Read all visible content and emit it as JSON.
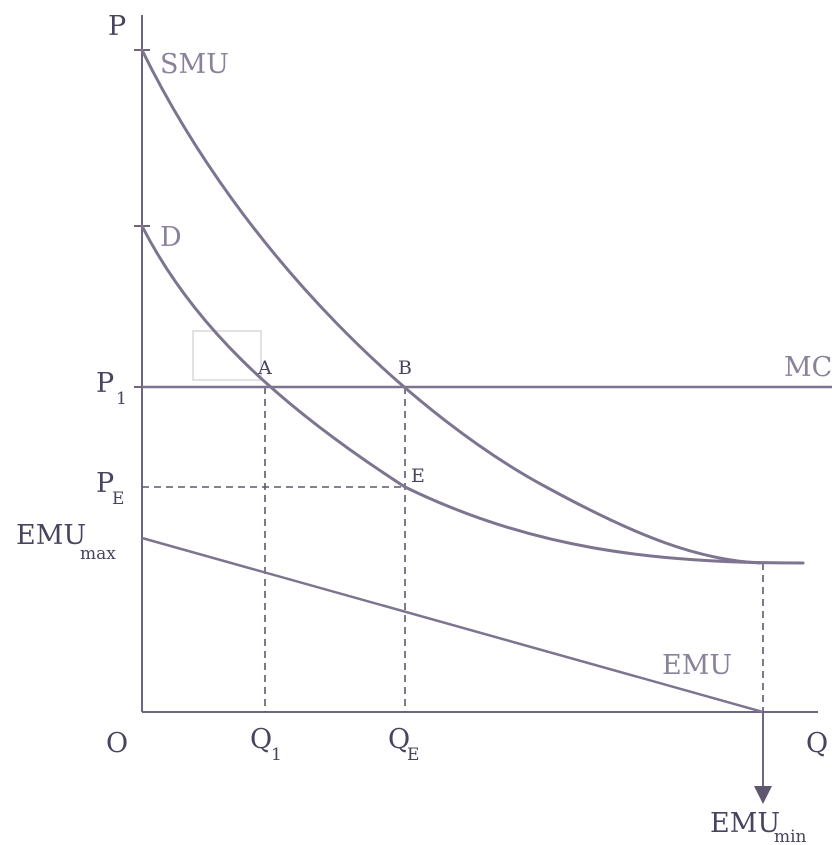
{
  "axes": {
    "y_label": "P",
    "x_label": "Q",
    "origin_label": "O"
  },
  "y_ticks": {
    "p1": "P",
    "p1_sub": "1",
    "pe": "P",
    "pe_sub": "E",
    "emu_max": "EMU",
    "emu_max_sub": "max"
  },
  "x_ticks": {
    "q1": "Q",
    "q1_sub": "1",
    "qe": "Q",
    "qe_sub": "E"
  },
  "curves": {
    "smu": "SMU",
    "d": "D",
    "mc": "MC",
    "emu": "EMU"
  },
  "points": {
    "a": "A",
    "b": "B",
    "e": "E"
  },
  "bottom": {
    "emu_min": "EMU",
    "emu_min_sub": "min"
  },
  "colors": {
    "curve": "#7d7490",
    "axis": "#6f6580",
    "text": "#4a4360"
  }
}
